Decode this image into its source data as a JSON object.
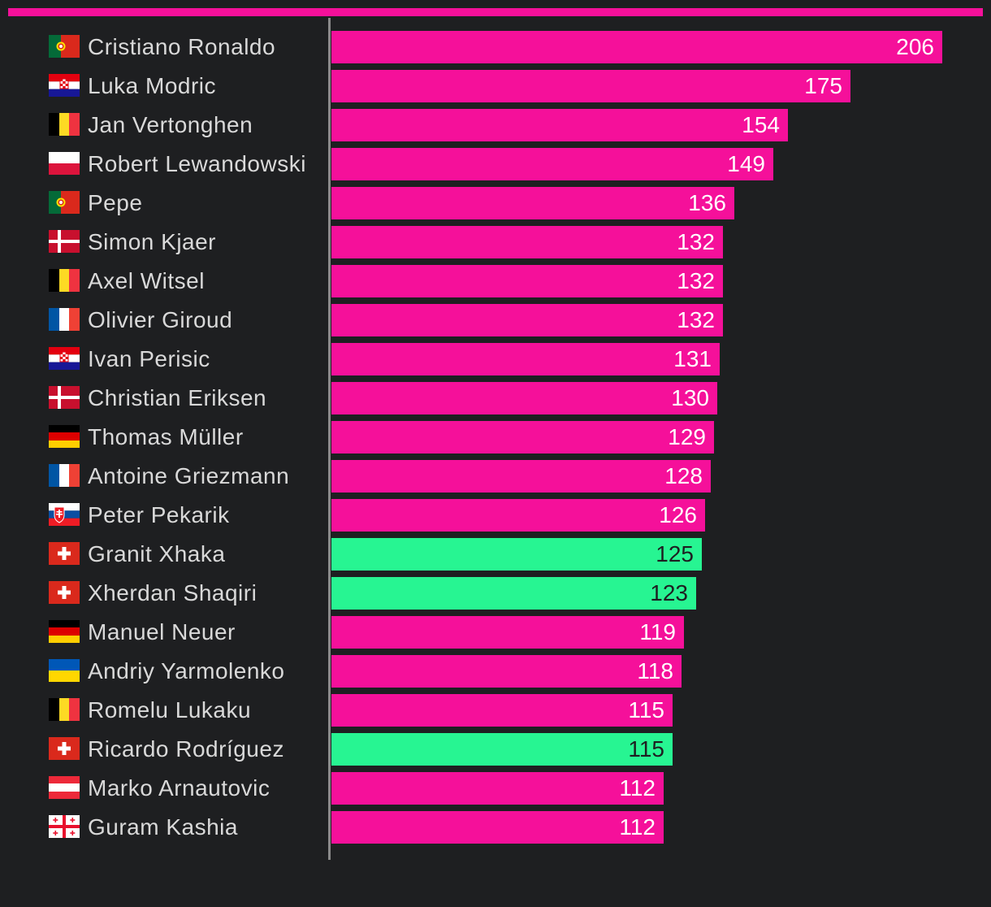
{
  "chart_data": {
    "type": "bar",
    "orientation": "horizontal",
    "xlim": [
      0,
      206
    ],
    "grid": false,
    "colors": {
      "default_bar": "#f5109a",
      "highlight_bar": "#27f592",
      "default_label": "#ffffff",
      "highlight_label": "#1e1f21",
      "top_bar": "#f5109a"
    },
    "categories": [
      "Cristiano Ronaldo",
      "Luka Modric",
      "Jan Vertonghen",
      "Robert Lewandowski",
      "Pepe",
      "Simon Kjaer",
      "Axel Witsel",
      "Olivier Giroud",
      "Ivan Perisic",
      "Christian Eriksen",
      "Thomas Müller",
      "Antoine Griezmann",
      "Peter Pekarik",
      "Granit Xhaka",
      "Xherdan Shaqiri",
      "Manuel Neuer",
      "Andriy Yarmolenko",
      "Romelu Lukaku",
      "Ricardo Rodríguez",
      "Marko Arnautovic",
      "Guram Kashia"
    ],
    "values": [
      206,
      175,
      154,
      149,
      136,
      132,
      132,
      132,
      131,
      130,
      129,
      128,
      126,
      125,
      123,
      119,
      118,
      115,
      115,
      112,
      112
    ],
    "value_labels": [
      "206",
      "175",
      "154",
      "149",
      "136",
      "132",
      "132",
      "132",
      "131",
      "130",
      "129",
      "128",
      "126",
      "125",
      "123",
      "119",
      "118",
      "115",
      "115",
      "112",
      "112"
    ],
    "highlighted": [
      false,
      false,
      false,
      false,
      false,
      false,
      false,
      false,
      false,
      false,
      false,
      false,
      false,
      true,
      true,
      false,
      false,
      false,
      true,
      false,
      false
    ],
    "flags": [
      "portugal-flag-icon",
      "croatia-flag-icon",
      "belgium-flag-icon",
      "poland-flag-icon",
      "portugal-flag-icon",
      "denmark-flag-icon",
      "belgium-flag-icon",
      "france-flag-icon",
      "croatia-flag-icon",
      "denmark-flag-icon",
      "germany-flag-icon",
      "france-flag-icon",
      "slovakia-flag-icon",
      "switzerland-flag-icon",
      "switzerland-flag-icon",
      "germany-flag-icon",
      "ukraine-flag-icon",
      "belgium-flag-icon",
      "switzerland-flag-icon",
      "austria-flag-icon",
      "georgia-flag-icon"
    ]
  }
}
